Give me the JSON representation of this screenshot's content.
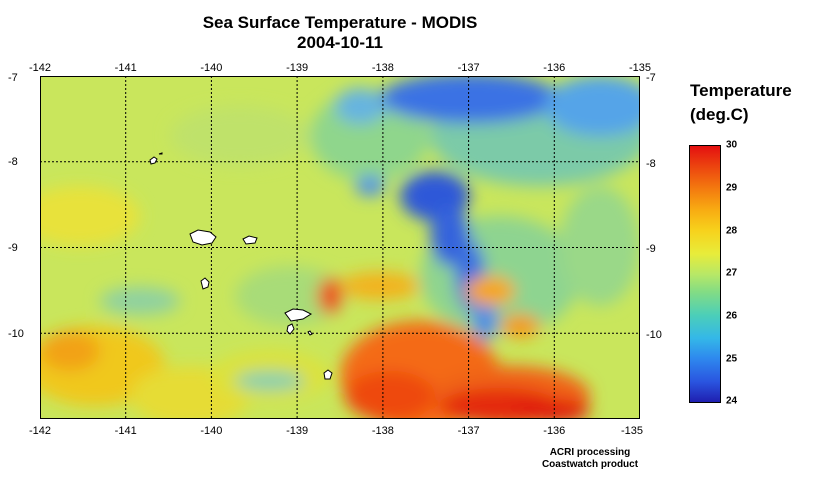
{
  "title": {
    "line1": "Sea Surface Temperature - MODIS",
    "line2": "2004-10-11"
  },
  "map": {
    "lon_range": [
      -142,
      -135
    ],
    "lat_range": [
      -11,
      -7
    ],
    "grid": "dashed",
    "x_ticks": [
      "-142",
      "-141",
      "-140",
      "-139",
      "-138",
      "-137",
      "-136",
      "-135"
    ],
    "y_ticks": [
      "-7",
      "-8",
      "-9",
      "-10"
    ],
    "land_color": "#ffffff",
    "islands": [
      "white island outlines (Marquesas)"
    ]
  },
  "legend": {
    "title_line1": "Temperature",
    "title_line2": "(deg.C)",
    "range": [
      24,
      30
    ],
    "ticks": [
      "30",
      "29",
      "28",
      "27",
      "26",
      "25",
      "24"
    ],
    "colors": {
      "low": "#1f1fb0",
      "mid": "#e8ec3a",
      "high": "#e41010"
    }
  },
  "credits": {
    "line1": "ACRI processing",
    "line2": "Coastwatch product"
  }
}
